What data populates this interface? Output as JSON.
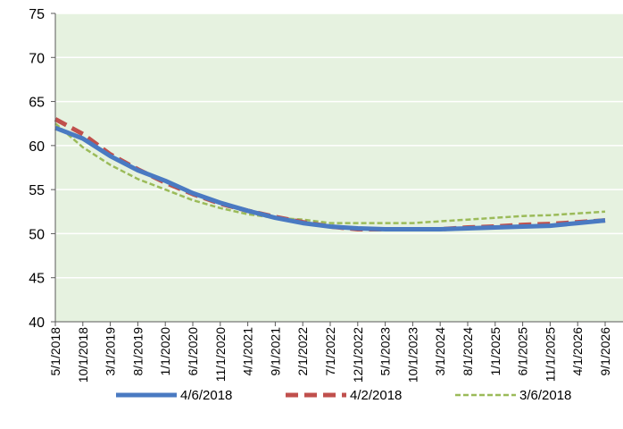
{
  "chart_data": {
    "type": "line",
    "title": "",
    "xlabel": "",
    "ylabel": "",
    "ylim": [
      40,
      75
    ],
    "yticks": [
      40,
      45,
      50,
      55,
      60,
      65,
      70,
      75
    ],
    "xticks": [
      "5/1/2018",
      "10/1/2018",
      "3/1/2019",
      "8/1/2019",
      "1/1/2020",
      "6/1/2020",
      "11/1/2020",
      "4/1/2021",
      "9/1/2021",
      "2/1/2022",
      "7/1/2022",
      "12/1/2022",
      "5/1/2023",
      "10/1/2023",
      "3/1/2024",
      "8/1/2024",
      "1/1/2025",
      "6/1/2025",
      "11/1/2025",
      "4/1/2026",
      "9/1/2026"
    ],
    "grid": "horizontal",
    "legend_position": "bottom",
    "plot_background": "#e6f2e0",
    "series": [
      {
        "name": "4/6/2018",
        "color": "#4a7ac2",
        "style": "solid",
        "x": [
          "5/1/2018",
          "10/1/2018",
          "3/1/2019",
          "8/1/2019",
          "1/1/2020",
          "6/1/2020",
          "11/1/2020",
          "4/1/2021",
          "9/1/2021",
          "2/1/2022",
          "7/1/2022",
          "12/1/2022",
          "5/1/2023",
          "10/1/2023",
          "3/1/2024",
          "8/1/2024",
          "1/1/2025",
          "6/1/2025",
          "11/1/2025",
          "4/1/2026",
          "9/1/2026"
        ],
        "values": [
          62.0,
          60.8,
          58.8,
          57.2,
          56.0,
          54.6,
          53.5,
          52.6,
          51.8,
          51.2,
          50.8,
          50.6,
          50.5,
          50.5,
          50.5,
          50.6,
          50.7,
          50.8,
          50.9,
          51.2,
          51.5
        ]
      },
      {
        "name": "4/2/2018",
        "color": "#c0504d",
        "style": "dashed",
        "x": [
          "5/1/2018",
          "10/1/2018",
          "3/1/2019",
          "8/1/2019",
          "1/1/2020",
          "6/1/2020",
          "11/1/2020",
          "4/1/2021",
          "9/1/2021",
          "2/1/2022",
          "7/1/2022",
          "12/1/2022",
          "5/1/2023",
          "10/1/2023",
          "3/1/2024",
          "8/1/2024",
          "1/1/2025",
          "6/1/2025",
          "11/1/2025",
          "4/1/2026",
          "9/1/2026"
        ],
        "values": [
          63.0,
          61.3,
          59.0,
          57.3,
          55.8,
          54.5,
          53.4,
          52.6,
          51.9,
          51.3,
          50.8,
          50.5,
          50.5,
          50.5,
          50.5,
          50.7,
          50.8,
          51.0,
          51.1,
          51.3,
          51.5
        ]
      },
      {
        "name": "3/6/2018",
        "color": "#9bbb59",
        "style": "dotted",
        "x": [
          "5/1/2018",
          "10/1/2018",
          "3/1/2019",
          "8/1/2019",
          "1/1/2020",
          "6/1/2020",
          "11/1/2020",
          "4/1/2021",
          "9/1/2021",
          "2/1/2022",
          "7/1/2022",
          "12/1/2022",
          "5/1/2023",
          "10/1/2023",
          "3/1/2024",
          "8/1/2024",
          "1/1/2025",
          "6/1/2025",
          "11/1/2025",
          "4/1/2026",
          "9/1/2026"
        ],
        "values": [
          62.5,
          59.8,
          57.8,
          56.2,
          55.0,
          53.8,
          52.9,
          52.2,
          51.8,
          51.6,
          51.2,
          51.2,
          51.2,
          51.2,
          51.4,
          51.6,
          51.8,
          52.0,
          52.1,
          52.3,
          52.5
        ]
      }
    ]
  }
}
